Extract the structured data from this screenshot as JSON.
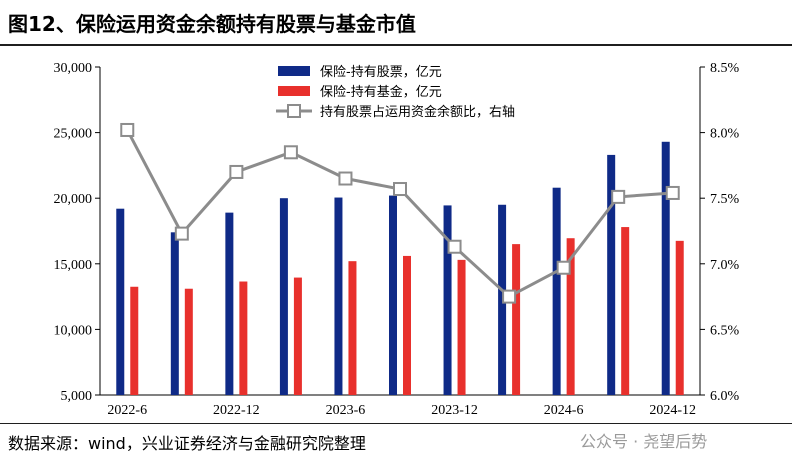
{
  "title": "图12、保险运用资金余额持有股票与基金市值",
  "source": "数据来源：wind，兴业证券经济与金融研究院整理",
  "watermark": "公众号 · 尧望后势",
  "colors": {
    "stocks": "#0f2a87",
    "funds": "#e8302c",
    "ratio_line": "#8c8c8c",
    "ratio_marker_fill": "#ffffff"
  },
  "chart_data": {
    "type": "bar",
    "categories": [
      "2022-6",
      "2022-9",
      "2022-12",
      "2023-3",
      "2023-6",
      "2023-9",
      "2023-12",
      "2024-3",
      "2024-6",
      "2024-9",
      "2024-12"
    ],
    "x_tick_labels": [
      "2022-6",
      "2022-12",
      "2023-6",
      "2023-12",
      "2024-6",
      "2024-12"
    ],
    "y_left": {
      "lim": [
        5000,
        30000
      ],
      "ticks": [
        "5,000",
        "10,000",
        "15,000",
        "20,000",
        "25,000",
        "30,000"
      ]
    },
    "y_right": {
      "lim": [
        6.0,
        8.5
      ],
      "ticks": [
        "6.0%",
        "6.5%",
        "7.0%",
        "7.5%",
        "8.0%",
        "8.5%"
      ]
    },
    "series": [
      {
        "name": "保险-持有股票，亿元",
        "kind": "bar",
        "axis": "left",
        "values": [
          19200,
          17400,
          18900,
          20000,
          20050,
          20200,
          19450,
          19500,
          20800,
          23300,
          24300
        ]
      },
      {
        "name": "保险-持有基金，亿元",
        "kind": "bar",
        "axis": "left",
        "values": [
          13250,
          13100,
          13650,
          13950,
          15200,
          15600,
          15300,
          16500,
          16950,
          17800,
          16750
        ]
      },
      {
        "name": "持有股票占运用资金余额比，右轴",
        "kind": "line",
        "axis": "right",
        "values": [
          8.02,
          7.23,
          7.7,
          7.85,
          7.65,
          7.57,
          7.13,
          6.75,
          6.97,
          7.51,
          7.54
        ]
      }
    ],
    "legend_position": "top-center",
    "grid": false
  }
}
